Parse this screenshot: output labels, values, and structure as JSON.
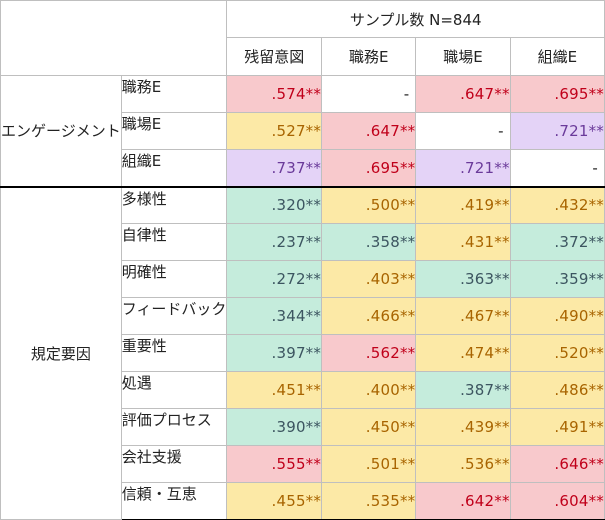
{
  "table": {
    "sample_label": "サンプル数 N=844",
    "columns": [
      "残留意図",
      "職務E",
      "職場E",
      "組織E"
    ],
    "colors": {
      "pink": "#f8c9cc",
      "yellow": "#fce9a6",
      "green": "#c5ecdc",
      "purple": "#e4d3f7",
      "white": "#ffffff",
      "text_pink": "#c0001a",
      "text_yellow": "#a86400",
      "text_green": "#3c5560",
      "text_purple": "#6a3a9a",
      "text_white": "#222222"
    },
    "groups": [
      {
        "label": "エンゲージメント",
        "rows": [
          {
            "label": "職務E",
            "cells": [
              {
                "value": ".574**",
                "tone": "pink"
              },
              {
                "value": "-",
                "tone": "white"
              },
              {
                "value": ".647**",
                "tone": "pink"
              },
              {
                "value": ".695**",
                "tone": "pink"
              }
            ]
          },
          {
            "label": "職場E",
            "cells": [
              {
                "value": ".527**",
                "tone": "yellow"
              },
              {
                "value": ".647**",
                "tone": "pink"
              },
              {
                "value": "-",
                "tone": "white"
              },
              {
                "value": ".721**",
                "tone": "purple"
              }
            ]
          },
          {
            "label": "組織E",
            "cells": [
              {
                "value": ".737**",
                "tone": "purple"
              },
              {
                "value": ".695**",
                "tone": "pink"
              },
              {
                "value": ".721**",
                "tone": "purple"
              },
              {
                "value": "-",
                "tone": "white"
              }
            ]
          }
        ]
      },
      {
        "label": "規定要因",
        "rows": [
          {
            "label": "多様性",
            "cells": [
              {
                "value": ".320**",
                "tone": "green"
              },
              {
                "value": ".500**",
                "tone": "yellow"
              },
              {
                "value": ".419**",
                "tone": "yellow"
              },
              {
                "value": ".432**",
                "tone": "yellow"
              }
            ]
          },
          {
            "label": "自律性",
            "cells": [
              {
                "value": ".237**",
                "tone": "green"
              },
              {
                "value": ".358**",
                "tone": "green"
              },
              {
                "value": ".431**",
                "tone": "yellow"
              },
              {
                "value": ".372**",
                "tone": "green"
              }
            ]
          },
          {
            "label": "明確性",
            "cells": [
              {
                "value": ".272**",
                "tone": "green"
              },
              {
                "value": ".403**",
                "tone": "yellow"
              },
              {
                "value": ".363**",
                "tone": "green"
              },
              {
                "value": ".359**",
                "tone": "green"
              }
            ]
          },
          {
            "label": "フィードバック",
            "cells": [
              {
                "value": ".344**",
                "tone": "green"
              },
              {
                "value": ".466**",
                "tone": "yellow"
              },
              {
                "value": ".467**",
                "tone": "yellow"
              },
              {
                "value": ".490**",
                "tone": "yellow"
              }
            ]
          },
          {
            "label": "重要性",
            "cells": [
              {
                "value": ".397**",
                "tone": "green"
              },
              {
                "value": ".562**",
                "tone": "pink"
              },
              {
                "value": ".474**",
                "tone": "yellow"
              },
              {
                "value": ".520**",
                "tone": "yellow"
              }
            ]
          },
          {
            "label": "処遇",
            "cells": [
              {
                "value": ".451**",
                "tone": "yellow"
              },
              {
                "value": ".400**",
                "tone": "yellow"
              },
              {
                "value": ".387**",
                "tone": "green"
              },
              {
                "value": ".486**",
                "tone": "yellow"
              }
            ]
          },
          {
            "label": "評価プロセス",
            "cells": [
              {
                "value": ".390**",
                "tone": "green"
              },
              {
                "value": ".450**",
                "tone": "yellow"
              },
              {
                "value": ".439**",
                "tone": "yellow"
              },
              {
                "value": ".491**",
                "tone": "yellow"
              }
            ]
          },
          {
            "label": "会社支援",
            "cells": [
              {
                "value": ".555**",
                "tone": "pink"
              },
              {
                "value": ".501**",
                "tone": "yellow"
              },
              {
                "value": ".536**",
                "tone": "yellow"
              },
              {
                "value": ".646**",
                "tone": "pink"
              }
            ]
          },
          {
            "label": "信頼・互恵",
            "cells": [
              {
                "value": ".455**",
                "tone": "yellow"
              },
              {
                "value": ".535**",
                "tone": "yellow"
              },
              {
                "value": ".642**",
                "tone": "pink"
              },
              {
                "value": ".604**",
                "tone": "pink"
              }
            ]
          }
        ]
      }
    ]
  }
}
